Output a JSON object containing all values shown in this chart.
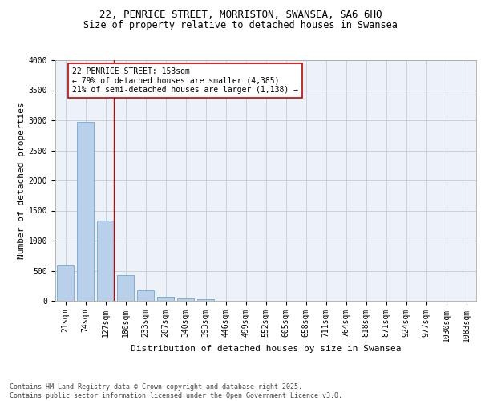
{
  "title_line1": "22, PENRICE STREET, MORRISTON, SWANSEA, SA6 6HQ",
  "title_line2": "Size of property relative to detached houses in Swansea",
  "xlabel": "Distribution of detached houses by size in Swansea",
  "ylabel": "Number of detached properties",
  "categories": [
    "21sqm",
    "74sqm",
    "127sqm",
    "180sqm",
    "233sqm",
    "287sqm",
    "340sqm",
    "393sqm",
    "446sqm",
    "499sqm",
    "552sqm",
    "605sqm",
    "658sqm",
    "711sqm",
    "764sqm",
    "818sqm",
    "871sqm",
    "924sqm",
    "977sqm",
    "1030sqm",
    "1083sqm"
  ],
  "values": [
    590,
    2970,
    1340,
    430,
    175,
    70,
    40,
    30,
    0,
    0,
    0,
    0,
    0,
    0,
    0,
    0,
    0,
    0,
    0,
    0,
    0
  ],
  "bar_color": "#b8d0ea",
  "bar_edge_color": "#5a9fd4",
  "vline_color": "#cc0000",
  "vline_bar_index": 2,
  "annotation_text": "22 PENRICE STREET: 153sqm\n← 79% of detached houses are smaller (4,385)\n21% of semi-detached houses are larger (1,138) →",
  "ylim": [
    0,
    4000
  ],
  "yticks": [
    0,
    500,
    1000,
    1500,
    2000,
    2500,
    3000,
    3500,
    4000
  ],
  "grid_color": "#c5ccd8",
  "bg_color": "#edf1f8",
  "footer_line1": "Contains HM Land Registry data © Crown copyright and database right 2025.",
  "footer_line2": "Contains public sector information licensed under the Open Government Licence v3.0.",
  "title_fontsize": 9,
  "subtitle_fontsize": 8.5,
  "axis_label_fontsize": 8,
  "tick_fontsize": 7,
  "annotation_fontsize": 7,
  "footer_fontsize": 6
}
